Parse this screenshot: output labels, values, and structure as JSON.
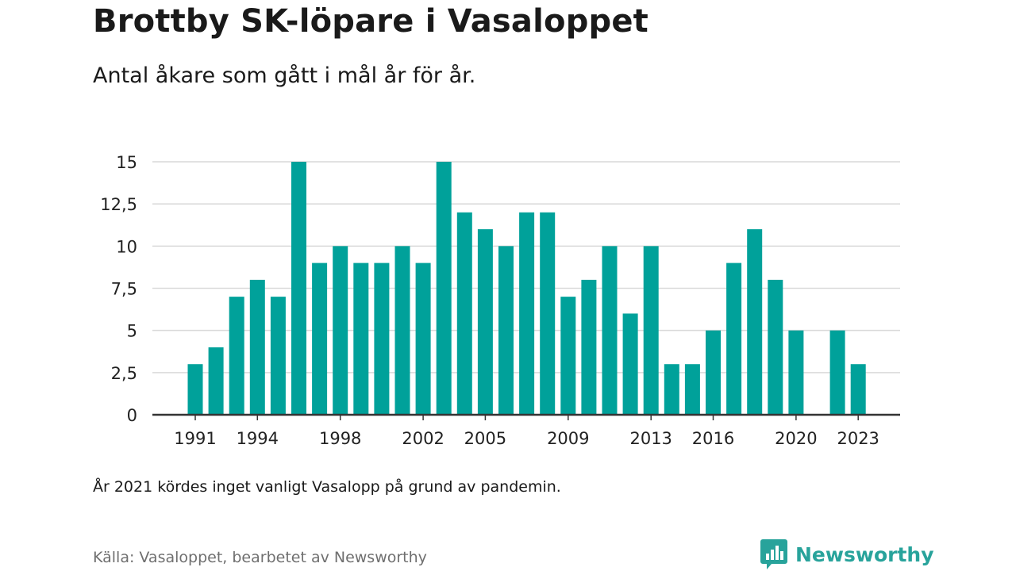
{
  "header": {
    "title": "Brottby SK-löpare i Vasaloppet",
    "subtitle": "Antal åkare som gått i mål år för år."
  },
  "footer": {
    "note": "År 2021 kördes inget vanligt Vasalopp på grund av pandemin.",
    "source": "Källa: Vasaloppet, bearbetet av Newsworthy",
    "brand": "Newsworthy"
  },
  "colors": {
    "bar": "#00a19a",
    "brand": "#28a39b",
    "grid": "#d9d9d9",
    "axis": "#333333"
  },
  "icons": {
    "logo": "newsworthy-chart-bubble-icon"
  },
  "chart_data": {
    "type": "bar",
    "x": [
      1991,
      1992,
      1993,
      1994,
      1995,
      1996,
      1997,
      1998,
      1999,
      2000,
      2001,
      2002,
      2003,
      2004,
      2005,
      2006,
      2007,
      2008,
      2009,
      2010,
      2011,
      2012,
      2013,
      2014,
      2015,
      2016,
      2017,
      2018,
      2019,
      2020,
      2021,
      2022,
      2023
    ],
    "values": [
      3,
      4,
      7,
      8,
      7,
      15,
      9,
      10,
      9,
      9,
      10,
      9,
      15,
      12,
      11,
      10,
      12,
      12,
      7,
      8,
      10,
      6,
      10,
      3,
      3,
      5,
      9,
      11,
      8,
      5,
      null,
      5,
      3
    ],
    "ylim": [
      0,
      15
    ],
    "yticks": [
      0,
      2.5,
      5,
      7.5,
      10,
      12.5,
      15
    ],
    "ytick_labels": [
      "0",
      "2,5",
      "5",
      "7,5",
      "10",
      "12,5",
      "15"
    ],
    "xticks": [
      1991,
      1994,
      1998,
      2002,
      2005,
      2009,
      2013,
      2016,
      2020,
      2023
    ],
    "grid": true
  }
}
